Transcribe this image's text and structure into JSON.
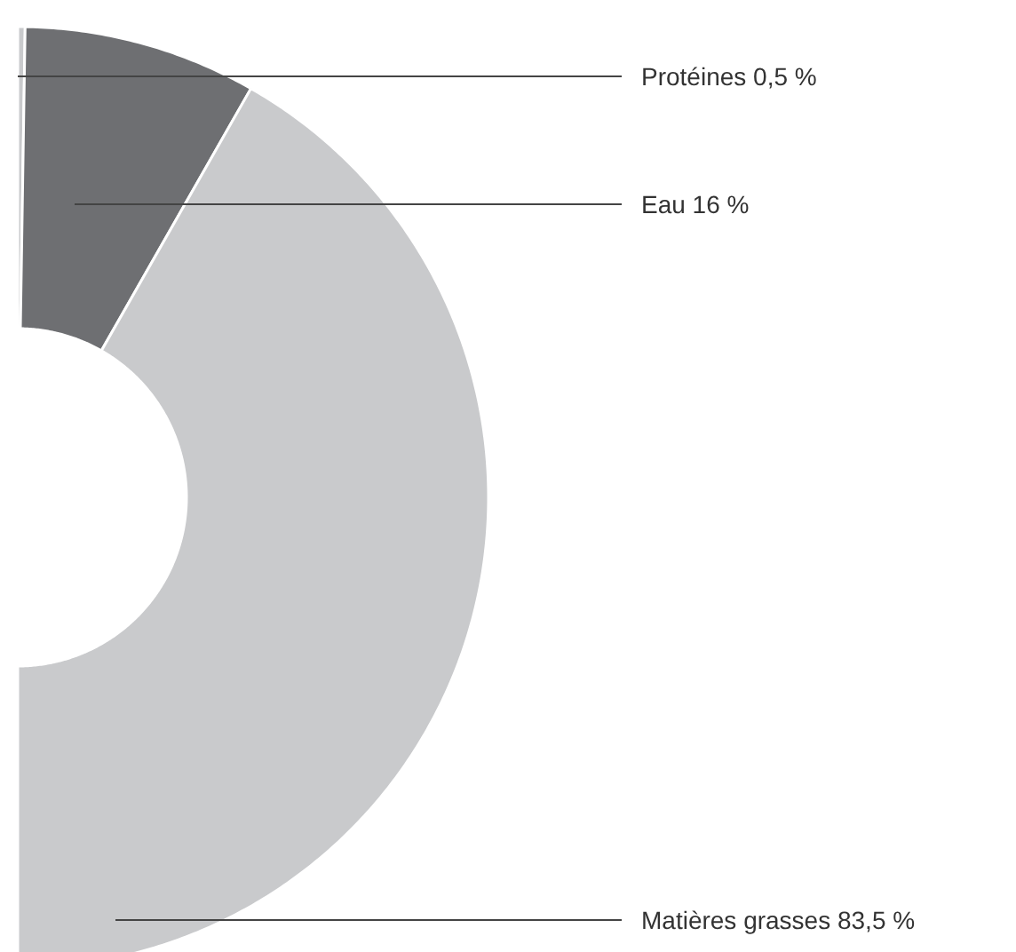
{
  "chart_data": {
    "type": "donut",
    "categories": [
      "Protéines",
      "Eau",
      "Matières grasses"
    ],
    "values": [
      0.5,
      16,
      83.5
    ],
    "colors": [
      "#c9cacc",
      "#6e6f72",
      "#c9cacc"
    ],
    "value_labels": [
      "0,5 %",
      "16 %",
      "83,5 %"
    ]
  }
}
